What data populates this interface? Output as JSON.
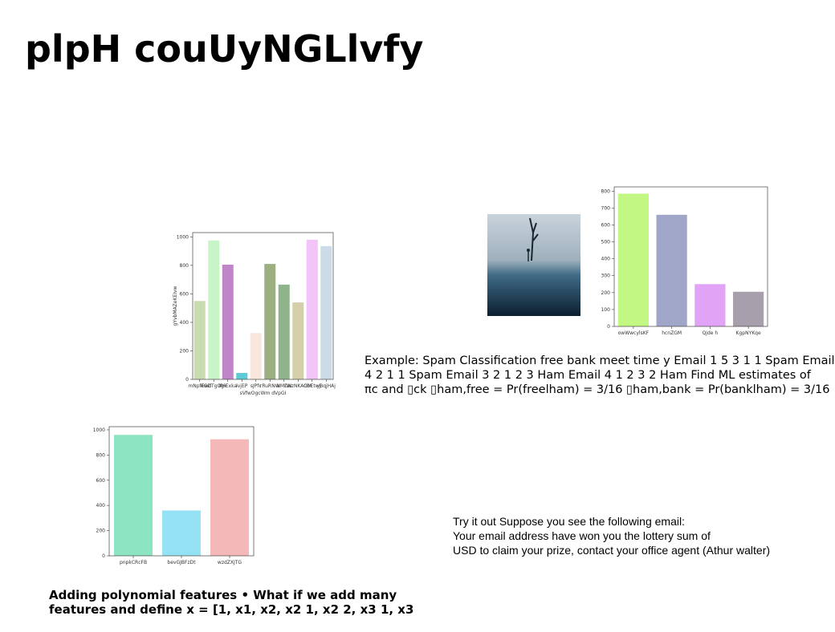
{
  "title": "plpH couUyNGLlvfy",
  "example_lines": [
    "Example: Spam Classification free bank meet time y Email 1 5 3 1 1 Spam Email",
    "4 2 1 1 Spam Email 3 2 1 2 3 Ham Email 4 1 2 3 2 Ham Find ML estimates of",
    "πc and ▯ck ▯ham,free = Pr(freelham) = 3/16 ▯ham,bank = Pr(banklham) = 3/16"
  ],
  "try_lines": [
    "Try it out Suppose you see the following email:",
    "Your email address have won you the lottery sum of",
    "USD to claim your prize, contact your office agent (Athur walter)"
  ],
  "poly_lines": [
    "Adding polynomial features • What if we add many",
    "features and define x = [1, x1, x2, x2 1, x2 2, x3 1, x3"
  ],
  "charts": [
    {
      "type": "bar",
      "ylabel": "gYvbMAZeKEIvw",
      "xlabel": "sVfwOgcWm dVpGI",
      "categories": [
        "mNpfEwd",
        "eGDTgOgk",
        "IfHExka",
        "lvjEP",
        "sJPfc",
        "rRuRNW",
        "NMDN",
        "rWzNKAGM",
        "ObEtwJ",
        "yBqjHAj"
      ],
      "values": [
        550,
        975,
        805,
        45,
        325,
        810,
        665,
        540,
        980,
        935
      ],
      "colors": [
        "#c9dbb0",
        "#c8f5c8",
        "#c084c8",
        "#5ccbd6",
        "#f9e6dc",
        "#9caf80",
        "#8fb38a",
        "#d4cfa8",
        "#f3c4f7",
        "#cddbe8"
      ],
      "ylim": [
        0,
        1030
      ],
      "yticks": [
        0,
        200,
        400,
        600,
        800,
        1000
      ]
    },
    {
      "type": "bar",
      "categories": [
        "owWwcylsKF",
        "hcnZGM",
        "Qjde h",
        "KgpNYKqe"
      ],
      "values": [
        785,
        660,
        250,
        205
      ],
      "colors": [
        "#c2f784",
        "#a0a6c8",
        "#e0a3f5",
        "#a89fad"
      ],
      "ylim": [
        0,
        825
      ],
      "yticks": [
        0,
        100,
        200,
        300,
        400,
        500,
        600,
        700,
        800
      ]
    },
    {
      "type": "bar",
      "categories": [
        "pnpkCRcFB",
        "bevGJBFzDt",
        "wzdZXJTG"
      ],
      "values": [
        960,
        360,
        925
      ],
      "colors": [
        "#8de4c0",
        "#96e2f5",
        "#f5b8b8"
      ],
      "ylim": [
        0,
        1025
      ],
      "yticks": [
        0,
        200,
        400,
        600,
        800,
        1000
      ]
    }
  ]
}
